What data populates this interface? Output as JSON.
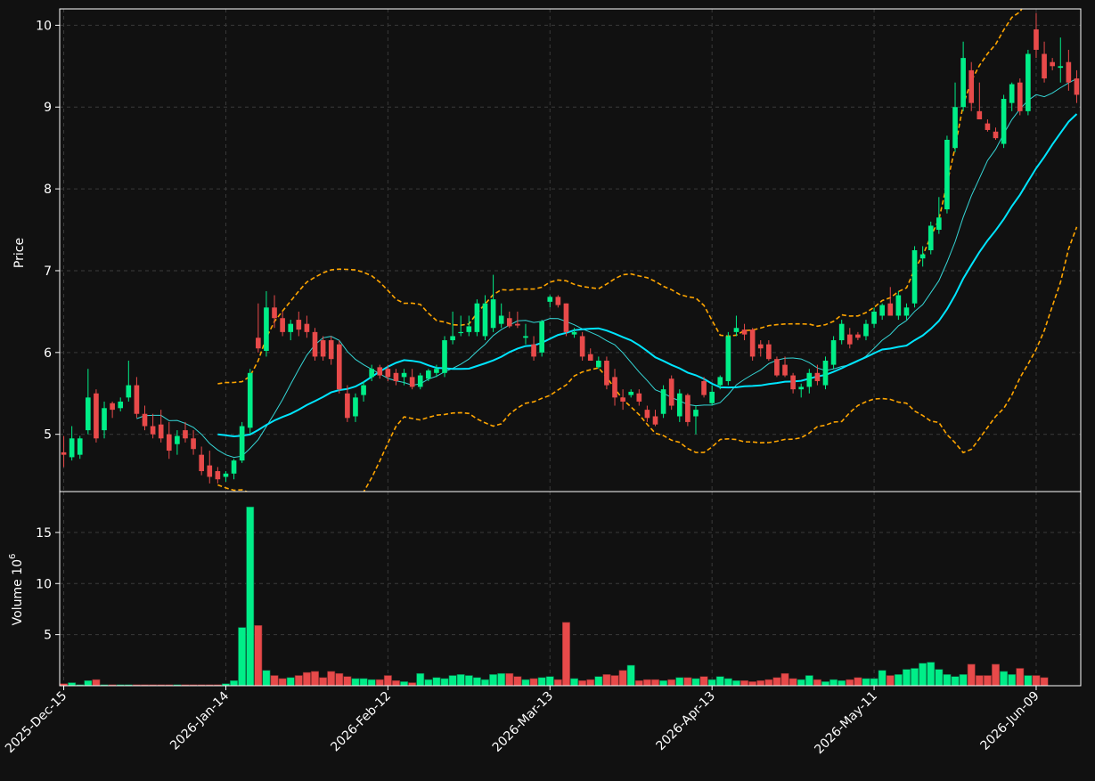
{
  "chart_data": {
    "type": "candlestick",
    "colors": {
      "background": "#111111",
      "grid": "#3a3a3a",
      "frame": "#ffffff",
      "up": "#00ee88",
      "down": "#e84a4a",
      "ma_fast": "#35d6d6",
      "ma_slow": "#00e5ff",
      "band": "#ffa500"
    },
    "x_labels": [
      "2025-Dec-15",
      "2026-Jan-14",
      "2026-Feb-12",
      "2026-Mar-13",
      "2026-Apr-13",
      "2026-May-11",
      "2026-Jun-09"
    ],
    "x_label_index": [
      0,
      20,
      40,
      60,
      80,
      100,
      120
    ],
    "price_panel": {
      "ylabel": "Price",
      "ylim": [
        4.3,
        10.2
      ],
      "yticks": [
        5,
        6,
        7,
        8,
        9,
        10
      ],
      "grid": true
    },
    "volume_panel": {
      "ylabel": "Volume  10",
      "ylabel_exponent": "6",
      "ylim": [
        0,
        19
      ],
      "yticks": [
        5,
        10,
        15
      ],
      "grid": true
    },
    "ohlc": [
      [
        4.78,
        4.98,
        4.6,
        4.75
      ],
      [
        4.72,
        5.1,
        4.68,
        4.95
      ],
      [
        4.75,
        4.98,
        4.7,
        4.95
      ],
      [
        5.05,
        5.8,
        5.0,
        5.45
      ],
      [
        5.5,
        5.55,
        4.9,
        4.95
      ],
      [
        5.05,
        5.4,
        4.95,
        5.32
      ],
      [
        5.38,
        5.4,
        5.2,
        5.3
      ],
      [
        5.32,
        5.45,
        5.28,
        5.4
      ],
      [
        5.45,
        5.9,
        5.4,
        5.6
      ],
      [
        5.6,
        5.7,
        5.2,
        5.25
      ],
      [
        5.25,
        5.35,
        5.05,
        5.1
      ],
      [
        5.1,
        5.25,
        4.95,
        5.0
      ],
      [
        5.12,
        5.3,
        4.9,
        4.95
      ],
      [
        5.0,
        5.15,
        4.7,
        4.8
      ],
      [
        4.88,
        5.05,
        4.75,
        4.98
      ],
      [
        5.05,
        5.15,
        4.9,
        4.95
      ],
      [
        4.95,
        5.05,
        4.75,
        4.82
      ],
      [
        4.75,
        4.85,
        4.5,
        4.55
      ],
      [
        4.62,
        4.8,
        4.4,
        4.48
      ],
      [
        4.55,
        4.6,
        4.4,
        4.45
      ],
      [
        4.48,
        4.55,
        4.42,
        4.52
      ],
      [
        4.52,
        4.7,
        4.45,
        4.68
      ],
      [
        4.68,
        5.15,
        4.65,
        5.1
      ],
      [
        5.08,
        5.8,
        5.0,
        5.75
      ],
      [
        6.18,
        6.6,
        6.0,
        6.05
      ],
      [
        6.02,
        6.75,
        5.95,
        6.55
      ],
      [
        6.55,
        6.7,
        6.3,
        6.42
      ],
      [
        6.42,
        6.5,
        6.2,
        6.25
      ],
      [
        6.25,
        6.4,
        6.15,
        6.35
      ],
      [
        6.4,
        6.5,
        6.2,
        6.28
      ],
      [
        6.35,
        6.45,
        6.18,
        6.25
      ],
      [
        6.25,
        6.3,
        5.9,
        5.95
      ],
      [
        6.15,
        6.2,
        5.9,
        5.95
      ],
      [
        6.15,
        6.2,
        5.85,
        5.92
      ],
      [
        6.1,
        6.15,
        5.5,
        5.55
      ],
      [
        5.5,
        5.6,
        5.15,
        5.2
      ],
      [
        5.22,
        5.5,
        5.15,
        5.45
      ],
      [
        5.48,
        5.65,
        5.4,
        5.6
      ],
      [
        5.7,
        5.85,
        5.65,
        5.8
      ],
      [
        5.82,
        5.85,
        5.68,
        5.72
      ],
      [
        5.8,
        5.85,
        5.65,
        5.7
      ],
      [
        5.75,
        5.8,
        5.6,
        5.65
      ],
      [
        5.7,
        5.8,
        5.6,
        5.75
      ],
      [
        5.7,
        5.8,
        5.55,
        5.58
      ],
      [
        5.58,
        5.75,
        5.55,
        5.72
      ],
      [
        5.68,
        5.8,
        5.65,
        5.78
      ],
      [
        5.75,
        5.85,
        5.7,
        5.8
      ],
      [
        5.75,
        6.2,
        5.7,
        6.15
      ],
      [
        6.15,
        6.5,
        6.1,
        6.2
      ],
      [
        6.25,
        6.45,
        6.2,
        6.25
      ],
      [
        6.25,
        6.45,
        6.2,
        6.32
      ],
      [
        6.25,
        6.65,
        6.2,
        6.6
      ],
      [
        6.2,
        6.7,
        6.15,
        6.6
      ],
      [
        6.3,
        6.95,
        6.25,
        6.65
      ],
      [
        6.35,
        6.6,
        6.3,
        6.45
      ],
      [
        6.42,
        6.5,
        6.3,
        6.32
      ],
      [
        6.35,
        6.5,
        6.3,
        6.33
      ],
      [
        6.18,
        6.35,
        6.1,
        6.2
      ],
      [
        6.1,
        6.2,
        5.9,
        5.95
      ],
      [
        6.0,
        6.4,
        5.95,
        6.38
      ],
      [
        6.62,
        6.7,
        6.55,
        6.68
      ],
      [
        6.68,
        6.7,
        6.55,
        6.58
      ],
      [
        6.6,
        6.6,
        6.2,
        6.25
      ],
      [
        6.22,
        6.3,
        6.18,
        6.25
      ],
      [
        6.2,
        6.25,
        5.9,
        5.95
      ],
      [
        5.98,
        6.05,
        5.9,
        5.9
      ],
      [
        5.82,
        5.95,
        5.8,
        5.9
      ],
      [
        5.9,
        5.95,
        5.55,
        5.6
      ],
      [
        5.7,
        5.8,
        5.35,
        5.45
      ],
      [
        5.45,
        5.55,
        5.3,
        5.4
      ],
      [
        5.48,
        5.55,
        5.45,
        5.52
      ],
      [
        5.5,
        5.55,
        5.35,
        5.4
      ],
      [
        5.3,
        5.35,
        5.15,
        5.2
      ],
      [
        5.22,
        5.3,
        5.1,
        5.12
      ],
      [
        5.25,
        5.6,
        5.2,
        5.55
      ],
      [
        5.68,
        5.72,
        5.3,
        5.35
      ],
      [
        5.22,
        5.55,
        5.15,
        5.5
      ],
      [
        5.48,
        5.5,
        5.1,
        5.15
      ],
      [
        5.22,
        5.35,
        5.0,
        5.3
      ],
      [
        5.65,
        5.7,
        5.45,
        5.48
      ],
      [
        5.38,
        5.6,
        5.35,
        5.52
      ],
      [
        5.6,
        5.72,
        5.55,
        5.7
      ],
      [
        5.65,
        6.25,
        5.6,
        6.2
      ],
      [
        6.25,
        6.45,
        6.2,
        6.3
      ],
      [
        6.28,
        6.35,
        6.15,
        6.22
      ],
      [
        6.28,
        6.3,
        5.9,
        5.95
      ],
      [
        6.1,
        6.15,
        5.95,
        6.05
      ],
      [
        6.1,
        6.15,
        5.9,
        5.92
      ],
      [
        5.92,
        5.95,
        5.7,
        5.72
      ],
      [
        5.85,
        5.95,
        5.7,
        5.72
      ],
      [
        5.72,
        5.75,
        5.5,
        5.55
      ],
      [
        5.55,
        5.62,
        5.45,
        5.58
      ],
      [
        5.58,
        5.8,
        5.5,
        5.75
      ],
      [
        5.75,
        5.85,
        5.6,
        5.65
      ],
      [
        5.6,
        5.95,
        5.55,
        5.9
      ],
      [
        5.85,
        6.2,
        5.8,
        6.15
      ],
      [
        6.15,
        6.4,
        6.1,
        6.35
      ],
      [
        6.22,
        6.3,
        6.05,
        6.1
      ],
      [
        6.22,
        6.25,
        6.15,
        6.18
      ],
      [
        6.2,
        6.4,
        6.15,
        6.35
      ],
      [
        6.35,
        6.55,
        6.3,
        6.5
      ],
      [
        6.45,
        6.6,
        6.4,
        6.58
      ],
      [
        6.6,
        6.8,
        6.5,
        6.45
      ],
      [
        6.45,
        6.75,
        6.4,
        6.7
      ],
      [
        6.45,
        6.6,
        6.4,
        6.55
      ],
      [
        6.6,
        7.3,
        6.55,
        7.25
      ],
      [
        7.15,
        7.3,
        7.05,
        7.2
      ],
      [
        7.25,
        7.6,
        7.2,
        7.55
      ],
      [
        7.5,
        7.9,
        7.45,
        7.65
      ],
      [
        7.75,
        8.65,
        7.7,
        8.6
      ],
      [
        8.5,
        9.3,
        8.45,
        9.0
      ],
      [
        9.0,
        9.8,
        8.95,
        9.6
      ],
      [
        9.45,
        9.55,
        8.95,
        9.05
      ],
      [
        8.95,
        9.3,
        8.85,
        8.85
      ],
      [
        8.8,
        8.85,
        8.7,
        8.72
      ],
      [
        8.7,
        8.75,
        8.6,
        8.62
      ],
      [
        8.55,
        9.15,
        8.5,
        9.1
      ],
      [
        9.05,
        9.3,
        8.95,
        9.28
      ],
      [
        9.3,
        9.35,
        8.9,
        8.95
      ],
      [
        8.95,
        9.7,
        8.9,
        9.65
      ],
      [
        9.95,
        10.15,
        9.6,
        9.7
      ],
      [
        9.65,
        9.8,
        9.3,
        9.35
      ],
      [
        9.55,
        9.6,
        9.45,
        9.5
      ],
      [
        9.48,
        9.85,
        9.3,
        9.5
      ],
      [
        9.55,
        9.7,
        9.2,
        9.3
      ],
      [
        9.35,
        9.45,
        9.05,
        9.15
      ]
    ],
    "volume_millions": [
      0.2,
      0.3,
      0.1,
      0.5,
      0.6,
      0.1,
      0.1,
      0.1,
      0.1,
      0.1,
      0.1,
      0.1,
      0.1,
      0.1,
      0.1,
      0.1,
      0.1,
      0.1,
      0.1,
      0.1,
      0.2,
      0.5,
      5.7,
      17.5,
      5.9,
      1.5,
      1.0,
      0.7,
      0.8,
      1.0,
      1.3,
      1.4,
      0.8,
      1.4,
      1.2,
      0.9,
      0.7,
      0.7,
      0.6,
      0.6,
      1.0,
      0.5,
      0.4,
      0.3,
      1.2,
      0.6,
      0.8,
      0.7,
      1.0,
      1.1,
      1.0,
      0.8,
      0.6,
      1.1,
      1.2,
      1.2,
      0.9,
      0.6,
      0.7,
      0.8,
      0.9,
      0.6,
      6.2,
      0.7,
      0.5,
      0.6,
      0.9,
      1.1,
      1.0,
      1.5,
      2.0,
      0.5,
      0.6,
      0.6,
      0.5,
      0.6,
      0.8,
      0.8,
      0.7,
      0.9,
      0.6,
      0.9,
      0.7,
      0.5,
      0.5,
      0.4,
      0.5,
      0.6,
      0.8,
      1.2,
      0.7,
      0.6,
      1.0,
      0.6,
      0.4,
      0.6,
      0.5,
      0.6,
      0.8,
      0.7,
      0.7,
      1.5,
      1.0,
      1.1,
      1.6,
      1.7,
      2.2,
      2.3,
      1.6,
      1.1,
      0.9,
      1.1,
      2.1,
      1.0,
      1.0,
      2.1,
      1.4,
      1.1,
      1.7,
      1.0,
      1.0,
      0.8
    ]
  }
}
